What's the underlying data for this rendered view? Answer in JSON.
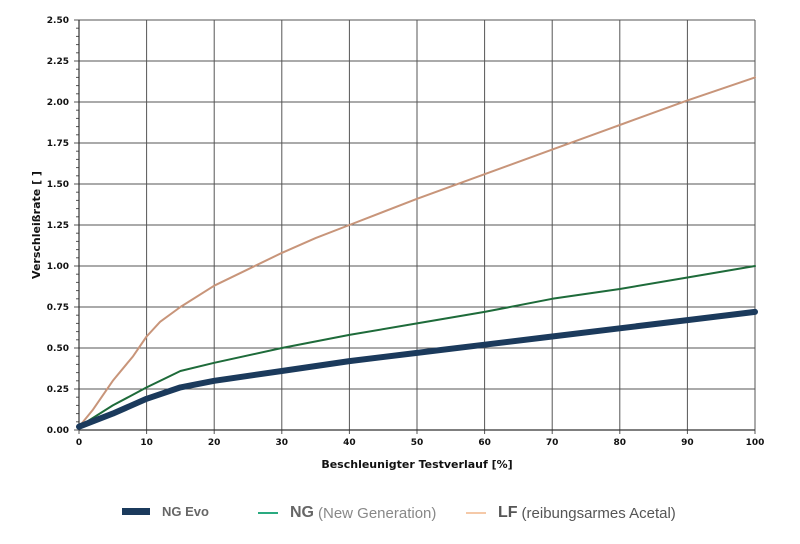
{
  "chart_data": {
    "type": "line",
    "title": "",
    "xlabel": "Beschleunigter Testverlauf [%]",
    "ylabel": "Verschleißrate [ ]",
    "xlim": [
      0,
      100
    ],
    "ylim": [
      0,
      2.5
    ],
    "xticks": [
      0,
      10,
      20,
      30,
      40,
      50,
      60,
      70,
      80,
      90,
      100
    ],
    "yticks": [
      "0.00",
      "0.25",
      "0.50",
      "0.75",
      "1.00",
      "1.25",
      "1.50",
      "1.75",
      "2.00",
      "2.25",
      "2.50"
    ],
    "grid": true,
    "legend_position": "bottom",
    "series": [
      {
        "name": "NG Evo",
        "legend_bold": "NG Evo",
        "legend_rest": "",
        "color": "#1b3a5c",
        "legend_color": "#1b3a5c",
        "x": [
          0,
          5,
          10,
          15,
          20,
          30,
          40,
          50,
          60,
          70,
          80,
          90,
          100
        ],
        "y": [
          0.02,
          0.1,
          0.19,
          0.26,
          0.3,
          0.36,
          0.42,
          0.47,
          0.52,
          0.57,
          0.62,
          0.67,
          0.72
        ]
      },
      {
        "name": "NG (New Generation)",
        "legend_bold": "NG",
        "legend_rest": "(New Generation)",
        "color": "#1e6b3a",
        "legend_color": "#2aaa80",
        "x": [
          0,
          5,
          10,
          15,
          20,
          30,
          40,
          50,
          60,
          70,
          80,
          90,
          100
        ],
        "y": [
          0.02,
          0.15,
          0.26,
          0.36,
          0.41,
          0.5,
          0.58,
          0.65,
          0.72,
          0.8,
          0.86,
          0.93,
          1.0
        ]
      },
      {
        "name": "LF (reibungsarmes Acetal)",
        "legend_bold": "LF",
        "legend_rest": "(reibungsarmes Acetal)",
        "color": "#c8957a",
        "legend_color": "#f5c9a8",
        "x": [
          0,
          2,
          5,
          8,
          10,
          12,
          15,
          20,
          25,
          30,
          35,
          40,
          50,
          60,
          70,
          80,
          90,
          100
        ],
        "y": [
          0.02,
          0.12,
          0.3,
          0.45,
          0.57,
          0.66,
          0.75,
          0.88,
          0.98,
          1.08,
          1.17,
          1.25,
          1.41,
          1.56,
          1.71,
          1.86,
          2.01,
          2.15
        ]
      }
    ]
  }
}
